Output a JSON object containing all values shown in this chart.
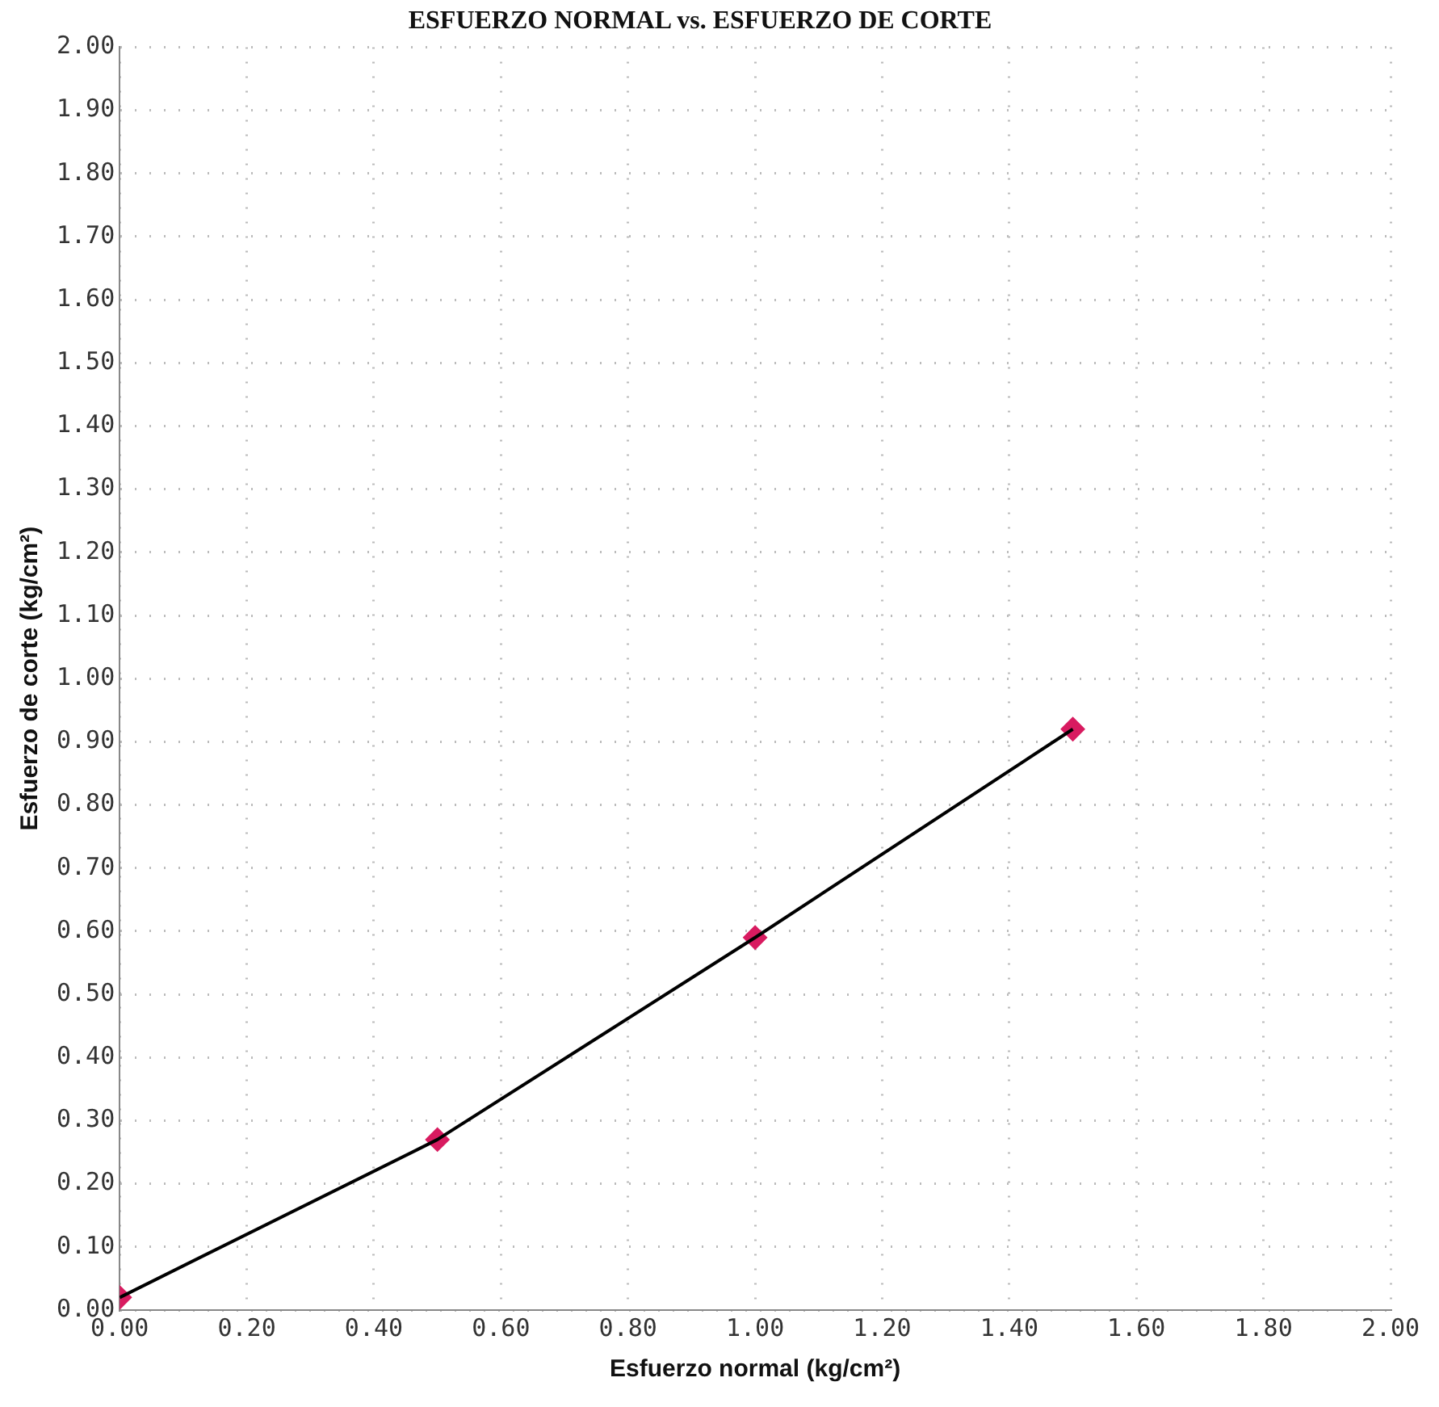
{
  "chart_data": {
    "type": "scatter",
    "title": "ESFUERZO NORMAL vs. ESFUERZO DE CORTE",
    "xlabel": "Esfuerzo normal (kg/cm²)",
    "ylabel": "Esfuerzo de corte (kg/cm²)",
    "series": [
      {
        "type": "line",
        "color": "#000000",
        "x": [
          0,
          0.5,
          1.0,
          1.5
        ],
        "values": [
          0.02,
          0.27,
          0.59,
          0.92
        ],
        "marker": "none"
      },
      {
        "type": "scatter",
        "color": "#d81b60",
        "x": [
          0,
          0.5,
          1.0,
          1.5
        ],
        "values": [
          0.02,
          0.27,
          0.59,
          0.92
        ],
        "marker": "diamond"
      }
    ],
    "xlim": [
      0,
      2
    ],
    "xticks": [
      {
        "value": 0,
        "label": "0.00"
      },
      {
        "value": 0.2,
        "label": "0.20"
      },
      {
        "value": 0.4,
        "label": "0.40"
      },
      {
        "value": 0.6,
        "label": "0.60"
      },
      {
        "value": 0.8,
        "label": "0.80"
      },
      {
        "value": 1,
        "label": "1.00"
      },
      {
        "value": 1.2,
        "label": "1.20"
      },
      {
        "value": 1.4,
        "label": "1.40"
      },
      {
        "value": 1.6,
        "label": "1.60"
      },
      {
        "value": 1.8,
        "label": "1.80"
      },
      {
        "value": 2,
        "label": "2.00"
      }
    ],
    "ylim": [
      0,
      2
    ],
    "yticks": [
      {
        "value": 0,
        "label": "0.00"
      },
      {
        "value": 0.1,
        "label": "0.10"
      },
      {
        "value": 0.2,
        "label": "0.20"
      },
      {
        "value": 0.3,
        "label": "0.30"
      },
      {
        "value": 0.4,
        "label": "0.40"
      },
      {
        "value": 0.5,
        "label": "0.50"
      },
      {
        "value": 0.6,
        "label": "0.60"
      },
      {
        "value": 0.7,
        "label": "0.70"
      },
      {
        "value": 0.8,
        "label": "0.80"
      },
      {
        "value": 0.9,
        "label": "0.90"
      },
      {
        "value": 1,
        "label": "1.00"
      },
      {
        "value": 1.1,
        "label": "1.10"
      },
      {
        "value": 1.2,
        "label": "1.20"
      },
      {
        "value": 1.3,
        "label": "1.30"
      },
      {
        "value": 1.4,
        "label": "1.40"
      },
      {
        "value": 1.5,
        "label": "1.50"
      },
      {
        "value": 1.6,
        "label": "1.60"
      },
      {
        "value": 1.7,
        "label": "1.70"
      },
      {
        "value": 1.8,
        "label": "1.80"
      },
      {
        "value": 1.9,
        "label": "1.90"
      },
      {
        "value": 2,
        "label": "2.00"
      }
    ],
    "grid": true
  }
}
